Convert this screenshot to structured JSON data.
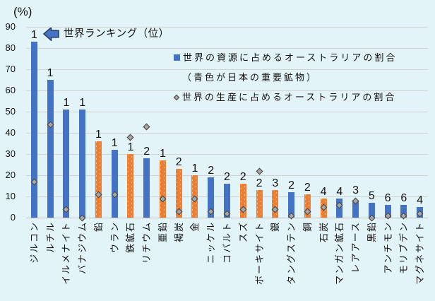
{
  "chart_data": {
    "type": "bar",
    "unit_label": "(%)",
    "annotation": "世界ランキング（位）",
    "categories": [
      "ジルコン",
      "ルチル",
      "イルメナイト",
      "バナジウム",
      "鉛",
      "ウラン",
      "鉄鉱石",
      "リチウム",
      "亜鉛",
      "褐炭",
      "金",
      "ニッケル",
      "コバルト",
      "スズ",
      "ボーキサイト",
      "銀",
      "タングステン",
      "銅",
      "石炭",
      "マンガン鉱石",
      "レアアース",
      "黒鉛",
      "アンチモン",
      "モリブデン",
      "マグネサイト"
    ],
    "series": [
      {
        "name": "世界の資源に占めるオーストラリアの割合",
        "type": "bar",
        "values": [
          83,
          65,
          51,
          51,
          36,
          32,
          30,
          28,
          27,
          23,
          20,
          19,
          16,
          16,
          13,
          13,
          12,
          11,
          9,
          9,
          8,
          7,
          6,
          6,
          5
        ]
      },
      {
        "name": "世界の生産に占めるオーストラリアの割合",
        "type": "scatter",
        "marker": "diamond",
        "values": [
          17,
          44,
          4,
          0,
          11,
          11,
          38,
          43,
          9,
          3,
          9,
          3,
          2,
          4,
          22,
          4,
          1,
          3,
          5,
          6,
          8,
          0,
          1,
          1,
          2
        ]
      }
    ],
    "rank_labels": [
      "1",
      "1",
      "1",
      "1",
      "1",
      "1",
      "1",
      "2",
      "1",
      "2",
      "1",
      "2",
      "2",
      "2",
      "2",
      "3",
      "2",
      "2",
      "4",
      "4",
      "3",
      "5",
      "6",
      "6",
      "4"
    ],
    "bar_colors": [
      "blue",
      "blue",
      "blue",
      "blue",
      "orange",
      "blue",
      "orange",
      "blue",
      "orange",
      "orange",
      "orange",
      "blue",
      "blue",
      "orange",
      "orange",
      "orange",
      "blue",
      "orange",
      "orange",
      "blue",
      "blue",
      "blue",
      "blue",
      "blue",
      "blue"
    ],
    "palette": {
      "blue": "#4472c4",
      "orange": "#ed7d31",
      "marker_fill": "#a6a6a6",
      "marker_border": "#404040",
      "background": "#e3f4f9",
      "gridline": "#d2d2d2"
    },
    "ylim": [
      0,
      90
    ],
    "yticks": [
      "0",
      "10",
      "20",
      "30",
      "40",
      "50",
      "60",
      "70",
      "80",
      "90"
    ],
    "grid": true,
    "legend_position": "top-right"
  },
  "legend": {
    "resource_label": "世界の資源に占めるオーストラリアの割合",
    "note": "（青色が日本の重要鉱物）",
    "production_label": "世界の生産に占めるオーストラリアの割合"
  }
}
